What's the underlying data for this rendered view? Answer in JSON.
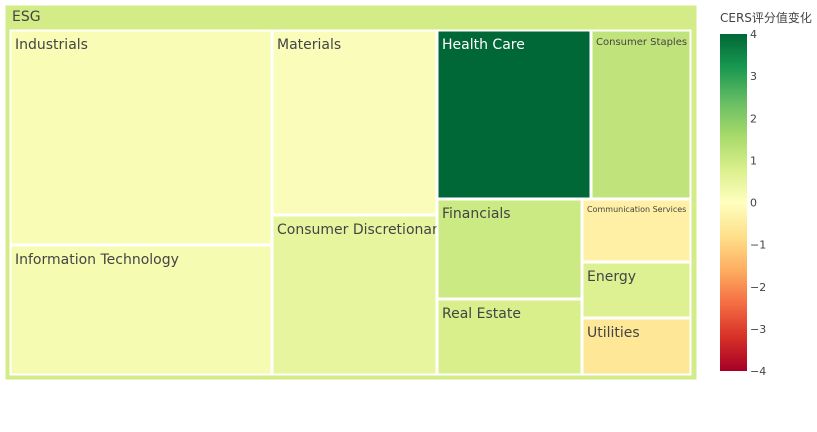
{
  "chart_data": {
    "type": "treemap",
    "root": "ESG",
    "colorbar": {
      "title": "CERS评分值变化",
      "range": [
        -4,
        4
      ],
      "ticks": [
        "4",
        "3",
        "2",
        "1",
        "0",
        "−1",
        "−2",
        "−3",
        "−4"
      ],
      "colorscale": [
        "#a50026",
        "#d73027",
        "#f46d43",
        "#fdae61",
        "#fee08b",
        "#ffffbf",
        "#d9ef8b",
        "#a6d96a",
        "#66bd63",
        "#1a9850",
        "#006837"
      ]
    },
    "root_value": 0.9,
    "sectors": [
      {
        "label": "Industrials",
        "value": 0.15
      },
      {
        "label": "Information Technology",
        "value": 0.2
      },
      {
        "label": "Materials",
        "value": 0.1
      },
      {
        "label": "Consumer Discretionary",
        "value": 0.5
      },
      {
        "label": "Health Care",
        "value": 4.0
      },
      {
        "label": "Consumer Staples",
        "value": 1.2
      },
      {
        "label": "Financials",
        "value": 1.0
      },
      {
        "label": "Communication Services",
        "value": -0.4
      },
      {
        "label": "Energy",
        "value": 0.7
      },
      {
        "label": "Real Estate",
        "value": 0.8
      },
      {
        "label": "Utilities",
        "value": -0.6
      }
    ]
  }
}
